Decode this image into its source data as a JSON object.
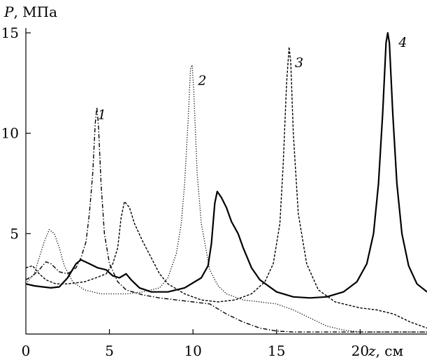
{
  "chart_data": {
    "type": "line",
    "title": "",
    "ylabel_var": "P",
    "ylabel_unit": ", МПа",
    "xlabel_var": "z",
    "xlabel_unit": ", см",
    "xlim": [
      0,
      24
    ],
    "ylim": [
      0,
      15
    ],
    "x_ticks": [
      0,
      5,
      10,
      15,
      20
    ],
    "y_ticks": [
      5,
      10,
      15
    ],
    "grid": false,
    "legend": "inline numbered labels near peaks",
    "series": [
      {
        "label": "1",
        "style": "dashdot",
        "label_at": [
          4.3,
          10.7
        ],
        "points": [
          [
            0,
            2.7
          ],
          [
            0.4,
            2.9
          ],
          [
            0.8,
            3.2
          ],
          [
            1.2,
            3.6
          ],
          [
            1.5,
            3.5
          ],
          [
            2.0,
            3.1
          ],
          [
            2.5,
            3.0
          ],
          [
            3.0,
            3.3
          ],
          [
            3.3,
            3.8
          ],
          [
            3.6,
            4.6
          ],
          [
            3.8,
            6.0
          ],
          [
            4.0,
            8.0
          ],
          [
            4.15,
            10.5
          ],
          [
            4.25,
            11.3
          ],
          [
            4.35,
            10.3
          ],
          [
            4.5,
            7.5
          ],
          [
            4.7,
            5.0
          ],
          [
            5.0,
            3.5
          ],
          [
            5.5,
            2.6
          ],
          [
            6.0,
            2.2
          ],
          [
            7.0,
            1.95
          ],
          [
            8.0,
            1.8
          ],
          [
            9.0,
            1.7
          ],
          [
            10.0,
            1.6
          ],
          [
            11.0,
            1.5
          ],
          [
            12.0,
            1.0
          ],
          [
            13.0,
            0.6
          ],
          [
            14.0,
            0.3
          ],
          [
            15.0,
            0.15
          ],
          [
            16.0,
            0.1
          ],
          [
            20.0,
            0.1
          ],
          [
            24.0,
            0.1
          ]
        ]
      },
      {
        "label": "2",
        "style": "dotted",
        "label_at": [
          10.3,
          12.4
        ],
        "points": [
          [
            0,
            2.5
          ],
          [
            0.5,
            3.0
          ],
          [
            0.8,
            3.8
          ],
          [
            1.1,
            4.6
          ],
          [
            1.4,
            5.2
          ],
          [
            1.7,
            5.0
          ],
          [
            2.0,
            4.3
          ],
          [
            2.3,
            3.4
          ],
          [
            2.8,
            2.6
          ],
          [
            3.5,
            2.2
          ],
          [
            4.5,
            2.0
          ],
          [
            6.0,
            2.0
          ],
          [
            7.0,
            2.1
          ],
          [
            8.0,
            2.3
          ],
          [
            8.5,
            2.8
          ],
          [
            9.0,
            4.0
          ],
          [
            9.3,
            5.5
          ],
          [
            9.5,
            7.5
          ],
          [
            9.7,
            10.5
          ],
          [
            9.85,
            13.2
          ],
          [
            9.95,
            13.4
          ],
          [
            10.05,
            12.0
          ],
          [
            10.25,
            8.0
          ],
          [
            10.5,
            5.5
          ],
          [
            11.0,
            3.2
          ],
          [
            11.5,
            2.4
          ],
          [
            12.0,
            2.0
          ],
          [
            13.0,
            1.7
          ],
          [
            14.0,
            1.6
          ],
          [
            15.0,
            1.5
          ],
          [
            16.0,
            1.2
          ],
          [
            17.0,
            0.8
          ],
          [
            18.0,
            0.4
          ],
          [
            19.0,
            0.2
          ],
          [
            20.0,
            0.1
          ],
          [
            24.0,
            0.1
          ]
        ]
      },
      {
        "label": "3",
        "style": "dashed",
        "label_at": [
          16.1,
          13.3
        ],
        "points": [
          [
            0,
            3.3
          ],
          [
            0.4,
            3.4
          ],
          [
            0.8,
            3.0
          ],
          [
            1.2,
            2.7
          ],
          [
            1.8,
            2.5
          ],
          [
            2.5,
            2.5
          ],
          [
            3.5,
            2.6
          ],
          [
            4.2,
            2.8
          ],
          [
            4.8,
            3.0
          ],
          [
            5.2,
            3.5
          ],
          [
            5.5,
            4.3
          ],
          [
            5.7,
            5.8
          ],
          [
            5.9,
            6.6
          ],
          [
            6.2,
            6.3
          ],
          [
            6.5,
            5.5
          ],
          [
            7.0,
            4.6
          ],
          [
            7.5,
            3.8
          ],
          [
            8.0,
            3.0
          ],
          [
            8.5,
            2.5
          ],
          [
            9.5,
            2.0
          ],
          [
            10.5,
            1.7
          ],
          [
            11.5,
            1.6
          ],
          [
            12.5,
            1.7
          ],
          [
            13.5,
            2.0
          ],
          [
            14.3,
            2.6
          ],
          [
            14.8,
            3.5
          ],
          [
            15.2,
            5.5
          ],
          [
            15.4,
            8.5
          ],
          [
            15.6,
            12.5
          ],
          [
            15.75,
            14.3
          ],
          [
            15.85,
            13.5
          ],
          [
            16.0,
            10.0
          ],
          [
            16.3,
            6.0
          ],
          [
            16.8,
            3.5
          ],
          [
            17.5,
            2.2
          ],
          [
            18.5,
            1.6
          ],
          [
            20.0,
            1.3
          ],
          [
            21.0,
            1.2
          ],
          [
            22.0,
            1.0
          ],
          [
            23.0,
            0.6
          ],
          [
            24.0,
            0.3
          ]
        ]
      },
      {
        "label": "4",
        "style": "solid",
        "label_at": [
          22.3,
          14.3
        ],
        "points": [
          [
            0,
            2.5
          ],
          [
            0.5,
            2.4
          ],
          [
            1.0,
            2.35
          ],
          [
            1.5,
            2.3
          ],
          [
            2.0,
            2.35
          ],
          [
            2.5,
            2.8
          ],
          [
            3.0,
            3.5
          ],
          [
            3.3,
            3.7
          ],
          [
            3.8,
            3.5
          ],
          [
            4.3,
            3.3
          ],
          [
            4.8,
            3.2
          ],
          [
            5.2,
            2.9
          ],
          [
            5.6,
            2.8
          ],
          [
            6.0,
            3.0
          ],
          [
            6.3,
            2.7
          ],
          [
            6.8,
            2.3
          ],
          [
            7.5,
            2.1
          ],
          [
            8.5,
            2.1
          ],
          [
            9.5,
            2.3
          ],
          [
            10.5,
            2.8
          ],
          [
            10.9,
            3.4
          ],
          [
            11.1,
            4.5
          ],
          [
            11.3,
            6.5
          ],
          [
            11.45,
            7.1
          ],
          [
            11.7,
            6.8
          ],
          [
            12.0,
            6.3
          ],
          [
            12.3,
            5.6
          ],
          [
            12.7,
            5.0
          ],
          [
            13.0,
            4.3
          ],
          [
            13.5,
            3.3
          ],
          [
            14.0,
            2.7
          ],
          [
            15.0,
            2.1
          ],
          [
            16.0,
            1.85
          ],
          [
            17.0,
            1.8
          ],
          [
            18.0,
            1.85
          ],
          [
            19.0,
            2.1
          ],
          [
            19.8,
            2.6
          ],
          [
            20.4,
            3.5
          ],
          [
            20.8,
            5.0
          ],
          [
            21.1,
            7.5
          ],
          [
            21.35,
            11.0
          ],
          [
            21.55,
            14.5
          ],
          [
            21.65,
            15.0
          ],
          [
            21.75,
            14.5
          ],
          [
            21.95,
            11.0
          ],
          [
            22.2,
            7.5
          ],
          [
            22.5,
            5.0
          ],
          [
            22.9,
            3.4
          ],
          [
            23.4,
            2.5
          ],
          [
            24.0,
            2.1
          ]
        ]
      }
    ]
  }
}
